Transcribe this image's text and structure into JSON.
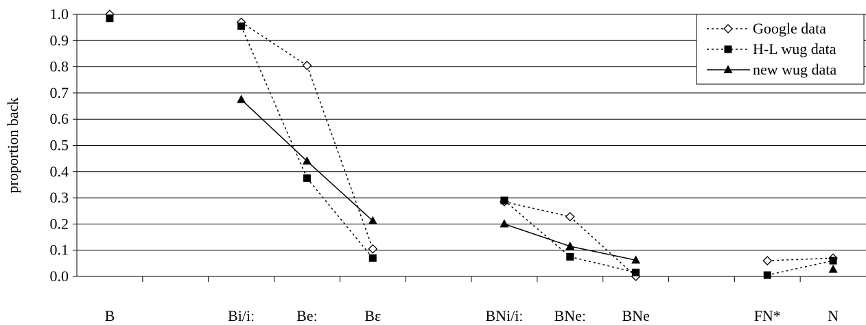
{
  "chart_data": {
    "type": "line",
    "title": "",
    "xlabel": "",
    "ylabel": "proportion back",
    "ylim": [
      0,
      1.0
    ],
    "yticks": [
      "0.0",
      "0.1",
      "0.2",
      "0.3",
      "0.4",
      "0.5",
      "0.6",
      "0.7",
      "0.8",
      "0.9",
      "1.0"
    ],
    "grid": "horizontal",
    "legend_position": "top-right",
    "slots": [
      "B",
      "",
      "Bi/iː",
      "Beː",
      "Bɛ",
      "",
      "BNi/iː",
      "BNeː",
      "BNe",
      "",
      "FN*",
      "N"
    ],
    "series": [
      {
        "name": "Google data",
        "marker": "open-diamond",
        "line_style": "dotted",
        "values": [
          1.0,
          null,
          0.97,
          0.805,
          0.105,
          null,
          0.285,
          0.228,
          0.0,
          null,
          0.06,
          0.07
        ]
      },
      {
        "name": "H-L wug data",
        "marker": "filled-square",
        "line_style": "dotted",
        "values": [
          0.985,
          null,
          0.955,
          0.375,
          0.07,
          null,
          0.29,
          0.075,
          0.015,
          null,
          0.005,
          0.06
        ]
      },
      {
        "name": "new wug data",
        "marker": "filled-triangle",
        "line_style": "solid",
        "values": [
          null,
          null,
          0.675,
          0.44,
          0.212,
          null,
          0.2,
          0.115,
          0.062,
          null,
          null,
          0.027
        ]
      }
    ]
  }
}
